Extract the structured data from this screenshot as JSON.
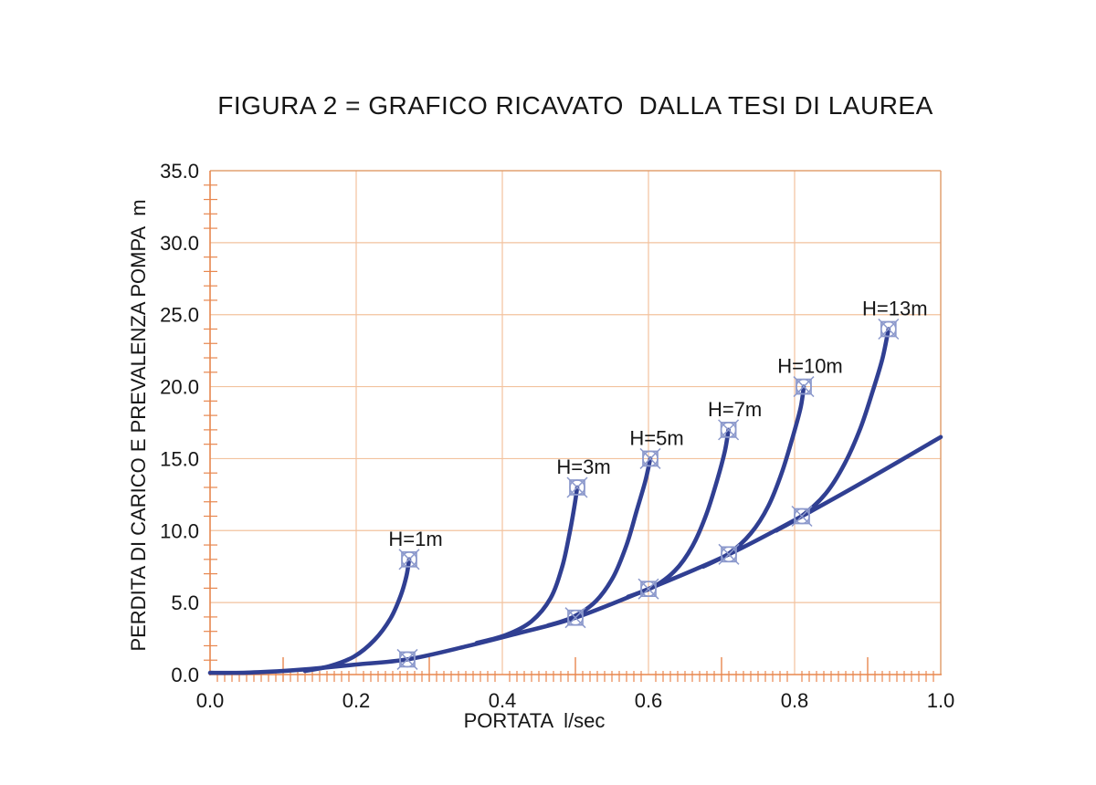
{
  "chart_data": {
    "type": "line",
    "title": "FIGURA 2 = GRAFICO RICAVATO  DALLA TESI DI LAUREA",
    "xlabel": "PORTATA  l/sec",
    "ylabel": "PERDITA DI CARICO E PREVALENZA POMPA  m",
    "xlim": [
      0.0,
      1.0
    ],
    "ylim": [
      0.0,
      35.0
    ],
    "grid": true,
    "legend_position": "none",
    "x_ticks": [
      {
        "v": 0.0,
        "label": "0.0"
      },
      {
        "v": 0.2,
        "label": "0.2"
      },
      {
        "v": 0.4,
        "label": "0.4"
      },
      {
        "v": 0.6,
        "label": "0.6"
      },
      {
        "v": 0.8,
        "label": "0.8"
      },
      {
        "v": 1.0,
        "label": "1.0"
      }
    ],
    "y_ticks": [
      {
        "v": 0.0,
        "label": "0.0"
      },
      {
        "v": 5.0,
        "label": "5.0"
      },
      {
        "v": 10.0,
        "label": "10.0"
      },
      {
        "v": 15.0,
        "label": "15.0"
      },
      {
        "v": 20.0,
        "label": "20.0"
      },
      {
        "v": 25.0,
        "label": "25.0"
      },
      {
        "v": 30.0,
        "label": "30.0"
      },
      {
        "v": 35.0,
        "label": "35.0"
      }
    ],
    "x_half_tick_step": 0.1,
    "x_minor_tick_step": 0.01,
    "y_minor_tick_step": 1.0,
    "series": [
      {
        "name": "curva-perdita-di-carico",
        "label": "",
        "points": [
          [
            0.0,
            0.12
          ],
          [
            0.05,
            0.13
          ],
          [
            0.1,
            0.25
          ],
          [
            0.15,
            0.45
          ],
          [
            0.2,
            0.7
          ],
          [
            0.27,
            1.05
          ],
          [
            0.35,
            1.95
          ],
          [
            0.42,
            2.85
          ],
          [
            0.5,
            3.95
          ],
          [
            0.6,
            5.95
          ],
          [
            0.71,
            8.35
          ],
          [
            0.81,
            11.0
          ],
          [
            0.9,
            13.55
          ],
          [
            1.0,
            16.5
          ]
        ],
        "end_marker": false
      },
      {
        "name": "pompa-H1",
        "label": "H=1m",
        "points": [
          [
            0.13,
            0.25
          ],
          [
            0.165,
            0.6
          ],
          [
            0.197,
            1.25
          ],
          [
            0.225,
            2.4
          ],
          [
            0.247,
            3.9
          ],
          [
            0.261,
            5.5
          ],
          [
            0.269,
            6.9
          ],
          [
            0.2725,
            8.0
          ]
        ],
        "end_marker": true
      },
      {
        "name": "pompa-H3",
        "label": "H=3m",
        "points": [
          [
            0.365,
            2.2
          ],
          [
            0.405,
            2.75
          ],
          [
            0.44,
            3.7
          ],
          [
            0.466,
            5.3
          ],
          [
            0.482,
            7.5
          ],
          [
            0.492,
            9.8
          ],
          [
            0.499,
            11.8
          ],
          [
            0.5025,
            13.0
          ]
        ],
        "end_marker": true
      },
      {
        "name": "pompa-H5",
        "label": "H=5m",
        "points": [
          [
            0.462,
            3.4
          ],
          [
            0.497,
            4.0
          ],
          [
            0.528,
            5.1
          ],
          [
            0.552,
            6.8
          ],
          [
            0.57,
            9.0
          ],
          [
            0.584,
            11.4
          ],
          [
            0.5955,
            13.4
          ],
          [
            0.6025,
            15.0
          ]
        ],
        "end_marker": true
      },
      {
        "name": "pompa-H7",
        "label": "H=7m",
        "points": [
          [
            0.572,
            5.4
          ],
          [
            0.607,
            6.1
          ],
          [
            0.636,
            7.2
          ],
          [
            0.66,
            8.9
          ],
          [
            0.679,
            11.1
          ],
          [
            0.694,
            13.5
          ],
          [
            0.7045,
            15.5
          ],
          [
            0.7095,
            17.0
          ]
        ],
        "end_marker": true
      },
      {
        "name": "pompa-H10",
        "label": "H=10m",
        "points": [
          [
            0.675,
            7.5
          ],
          [
            0.71,
            8.4
          ],
          [
            0.74,
            9.8
          ],
          [
            0.764,
            11.7
          ],
          [
            0.783,
            14.1
          ],
          [
            0.798,
            16.6
          ],
          [
            0.8085,
            18.6
          ],
          [
            0.8125,
            20.0
          ]
        ],
        "end_marker": true
      },
      {
        "name": "pompa-H13",
        "label": "H=13m",
        "points": [
          [
            0.775,
            10.0
          ],
          [
            0.812,
            11.1
          ],
          [
            0.843,
            12.6
          ],
          [
            0.868,
            14.6
          ],
          [
            0.89,
            17.1
          ],
          [
            0.907,
            19.7
          ],
          [
            0.92,
            21.9
          ],
          [
            0.9285,
            24.0
          ]
        ],
        "end_marker": true
      }
    ],
    "operating_point_markers": [
      [
        0.27,
        1.05
      ],
      [
        0.5,
        3.95
      ],
      [
        0.6,
        5.95
      ],
      [
        0.71,
        8.35
      ],
      [
        0.81,
        11.0
      ]
    ],
    "colors": {
      "curve": "#303F92",
      "marker": "#8C99CC",
      "grid": "#F2C29E",
      "border": "#E2A070",
      "axis": "#E8874F",
      "text": "#161616"
    }
  }
}
